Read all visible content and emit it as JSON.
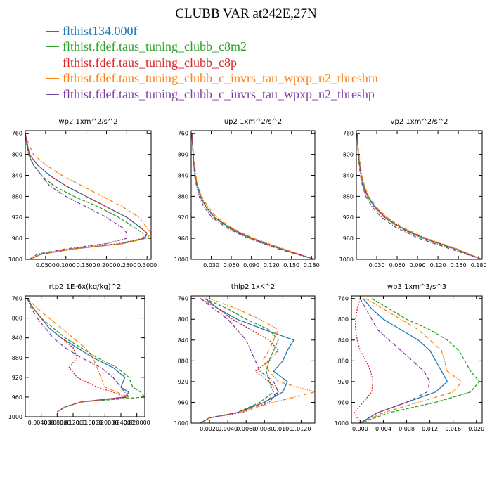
{
  "title": "CLUBB VAR at242E,27N",
  "legend": [
    {
      "label": "flthist134.000f",
      "color": "#1f77b4"
    },
    {
      "label": "flthist.fdef.taus_tuning_clubb_c8m2",
      "color": "#2ca02c"
    },
    {
      "label": "flthist.fdef.taus_tuning_clubb_c8p",
      "color": "#d62728"
    },
    {
      "label": "flthist.fdef.taus_tuning_clubb_c_invrs_tau_wpxp_n2_threshm",
      "color": "#ff7f0e"
    },
    {
      "label": "flthist.fdef.taus_tuning_clubb_c_invrs_tau_wpxp_n2_threshp",
      "color": "#7b3f9e"
    }
  ],
  "chart_data": [
    {
      "type": "line",
      "title": "wp2  1xm^2/s^2",
      "ylim": [
        1000,
        755
      ],
      "yticks": [
        760,
        800,
        840,
        880,
        920,
        960,
        1000
      ],
      "xlim": [
        0,
        0.31
      ],
      "xticks": [
        0.05,
        0.1,
        0.15,
        0.2,
        0.25,
        0.3
      ],
      "xticklabels": [
        "0.0500",
        "0.1000",
        "0.1500",
        "0.2000",
        "0.2500",
        "0.3000"
      ],
      "y": [
        760,
        780,
        800,
        820,
        840,
        860,
        880,
        900,
        920,
        940,
        950,
        960,
        970,
        980,
        990,
        1000
      ],
      "series": [
        {
          "values": [
            0.0,
            0.005,
            0.01,
            0.03,
            0.06,
            0.1,
            0.15,
            0.2,
            0.25,
            0.285,
            0.3,
            0.295,
            0.24,
            0.12,
            0.04,
            0.01
          ]
        },
        {
          "values": [
            0.0,
            0.003,
            0.008,
            0.02,
            0.04,
            0.07,
            0.12,
            0.18,
            0.23,
            0.27,
            0.29,
            0.29,
            0.24,
            0.12,
            0.04,
            0.01
          ]
        },
        {
          "values": [
            0.0,
            0.005,
            0.01,
            0.03,
            0.06,
            0.1,
            0.15,
            0.2,
            0.25,
            0.285,
            0.3,
            0.29,
            0.23,
            0.11,
            0.04,
            0.01
          ]
        },
        {
          "values": [
            0.0,
            0.008,
            0.02,
            0.05,
            0.09,
            0.14,
            0.19,
            0.24,
            0.28,
            0.3,
            0.31,
            0.3,
            0.24,
            0.12,
            0.04,
            0.01
          ]
        },
        {
          "values": [
            0.0,
            0.004,
            0.008,
            0.02,
            0.04,
            0.06,
            0.1,
            0.15,
            0.2,
            0.24,
            0.25,
            0.25,
            0.2,
            0.1,
            0.03,
            0.01
          ]
        }
      ]
    },
    {
      "type": "line",
      "title": "up2  1xm^2/s^2",
      "ylim": [
        1000,
        755
      ],
      "yticks": [
        760,
        800,
        840,
        880,
        920,
        960,
        1000
      ],
      "xlim": [
        0,
        0.185
      ],
      "xticks": [
        0.03,
        0.06,
        0.09,
        0.12,
        0.15,
        0.18
      ],
      "xticklabels": [
        "0.030",
        "0.060",
        "0.090",
        "0.120",
        "0.150",
        "0.180"
      ],
      "y": [
        760,
        780,
        800,
        820,
        840,
        860,
        880,
        900,
        920,
        940,
        960,
        980,
        1000
      ],
      "series": [
        {
          "values": [
            0.001,
            0.002,
            0.003,
            0.004,
            0.006,
            0.009,
            0.014,
            0.022,
            0.035,
            0.058,
            0.09,
            0.135,
            0.185
          ]
        },
        {
          "values": [
            0.001,
            0.002,
            0.003,
            0.004,
            0.006,
            0.009,
            0.014,
            0.022,
            0.034,
            0.056,
            0.088,
            0.133,
            0.185
          ]
        },
        {
          "values": [
            0.001,
            0.002,
            0.003,
            0.004,
            0.006,
            0.009,
            0.015,
            0.023,
            0.036,
            0.059,
            0.091,
            0.136,
            0.185
          ]
        },
        {
          "values": [
            0.001,
            0.002,
            0.003,
            0.005,
            0.007,
            0.01,
            0.016,
            0.025,
            0.038,
            0.061,
            0.093,
            0.138,
            0.185
          ]
        },
        {
          "values": [
            0.001,
            0.002,
            0.003,
            0.004,
            0.005,
            0.008,
            0.012,
            0.019,
            0.031,
            0.053,
            0.085,
            0.13,
            0.185
          ]
        }
      ]
    },
    {
      "type": "line",
      "title": "vp2  1xm^2/s^2",
      "ylim": [
        1000,
        755
      ],
      "yticks": [
        760,
        800,
        840,
        880,
        920,
        960,
        1000
      ],
      "xlim": [
        0,
        0.185
      ],
      "xticks": [
        0.03,
        0.06,
        0.09,
        0.12,
        0.15,
        0.18
      ],
      "xticklabels": [
        "0.030",
        "0.060",
        "0.090",
        "0.120",
        "0.150",
        "0.180"
      ],
      "y": [
        760,
        780,
        800,
        820,
        840,
        860,
        880,
        900,
        920,
        940,
        960,
        980,
        1000
      ],
      "series": [
        {
          "values": [
            0.001,
            0.002,
            0.003,
            0.005,
            0.007,
            0.011,
            0.017,
            0.027,
            0.042,
            0.066,
            0.1,
            0.145,
            0.185
          ]
        },
        {
          "values": [
            0.001,
            0.002,
            0.003,
            0.005,
            0.007,
            0.01,
            0.016,
            0.026,
            0.041,
            0.064,
            0.098,
            0.143,
            0.185
          ]
        },
        {
          "values": [
            0.001,
            0.002,
            0.003,
            0.005,
            0.007,
            0.011,
            0.017,
            0.028,
            0.043,
            0.067,
            0.101,
            0.146,
            0.185
          ]
        },
        {
          "values": [
            0.001,
            0.002,
            0.004,
            0.006,
            0.008,
            0.012,
            0.018,
            0.029,
            0.045,
            0.069,
            0.103,
            0.148,
            0.185
          ]
        },
        {
          "values": [
            0.001,
            0.002,
            0.003,
            0.004,
            0.006,
            0.009,
            0.014,
            0.023,
            0.037,
            0.059,
            0.092,
            0.138,
            0.185
          ]
        }
      ]
    },
    {
      "type": "line",
      "title": "rtp2  1E-6x(kg/kg)^2",
      "ylim": [
        1000,
        755
      ],
      "yticks": [
        760,
        800,
        840,
        880,
        920,
        960,
        1000
      ],
      "xlim": [
        0,
        0.03
      ],
      "xticks": [
        0.004,
        0.008,
        0.012,
        0.016,
        0.02,
        0.024,
        0.028
      ],
      "xticklabels": [
        "0.004000",
        "0.008000",
        "0.012000",
        "0.016000",
        "0.020000",
        "0.024000",
        "0.028000"
      ],
      "y": [
        760,
        780,
        800,
        820,
        840,
        860,
        880,
        900,
        920,
        940,
        950,
        960,
        970,
        980,
        990
      ],
      "series": [
        {
          "values": [
            0.0005,
            0.002,
            0.004,
            0.006,
            0.009,
            0.013,
            0.017,
            0.022,
            0.025,
            0.024,
            0.026,
            0.025,
            0.014,
            0.01,
            0.008
          ]
        },
        {
          "values": [
            0.0005,
            0.002,
            0.004,
            0.007,
            0.01,
            0.014,
            0.018,
            0.023,
            0.026,
            0.027,
            0.029,
            0.03,
            0.014,
            0.01,
            0.008
          ]
        },
        {
          "values": [
            0.0005,
            0.002,
            0.004,
            0.006,
            0.009,
            0.012,
            0.013,
            0.011,
            0.013,
            0.018,
            0.022,
            0.025,
            0.014,
            0.01,
            0.008
          ]
        },
        {
          "values": [
            0.0005,
            0.003,
            0.006,
            0.009,
            0.012,
            0.015,
            0.017,
            0.018,
            0.019,
            0.02,
            0.023,
            0.026,
            0.014,
            0.01,
            0.008
          ]
        },
        {
          "values": [
            0.0005,
            0.0015,
            0.003,
            0.005,
            0.007,
            0.01,
            0.014,
            0.019,
            0.022,
            0.024,
            0.025,
            0.026,
            0.014,
            0.01,
            0.008
          ]
        }
      ]
    },
    {
      "type": "line",
      "title": "thlp2  1xK^2",
      "ylim": [
        1000,
        755
      ],
      "yticks": [
        760,
        800,
        840,
        880,
        920,
        960,
        1000
      ],
      "xlim": [
        0,
        0.0135
      ],
      "xticks": [
        0.002,
        0.004,
        0.006,
        0.008,
        0.01,
        0.012
      ],
      "xticklabels": [
        "0.0020",
        "0.0040",
        "0.0060",
        "0.0080",
        "0.0100",
        "0.0120"
      ],
      "y": [
        760,
        780,
        800,
        820,
        840,
        860,
        880,
        900,
        920,
        940,
        960,
        980,
        990,
        1000
      ],
      "series": [
        {
          "values": [
            0.0015,
            0.003,
            0.005,
            0.008,
            0.0112,
            0.0105,
            0.01,
            0.009,
            0.0105,
            0.01,
            0.008,
            0.005,
            0.002,
            0.001
          ]
        },
        {
          "values": [
            0.0015,
            0.004,
            0.006,
            0.0085,
            0.0095,
            0.009,
            0.0085,
            0.0082,
            0.0085,
            0.009,
            0.0075,
            0.005,
            0.002,
            0.001
          ]
        },
        {
          "values": [
            0.001,
            0.003,
            0.0045,
            0.0065,
            0.0085,
            0.0095,
            0.0085,
            0.007,
            0.0085,
            0.0095,
            0.0085,
            0.0055,
            0.002,
            0.001
          ]
        },
        {
          "values": [
            0.002,
            0.005,
            0.0075,
            0.0095,
            0.009,
            0.0085,
            0.0078,
            0.0085,
            0.0095,
            0.0135,
            0.009,
            0.005,
            0.002,
            0.001
          ]
        },
        {
          "values": [
            0.001,
            0.0025,
            0.004,
            0.005,
            0.006,
            0.0065,
            0.007,
            0.0075,
            0.009,
            0.0095,
            0.008,
            0.005,
            0.002,
            0.001
          ]
        }
      ]
    },
    {
      "type": "line",
      "title": "wp3  1xm^3/s^3",
      "ylim": [
        1000,
        755
      ],
      "yticks": [
        760,
        800,
        840,
        880,
        920,
        960,
        1000
      ],
      "xlim": [
        -0.0015,
        0.021
      ],
      "xticks": [
        0.0,
        0.004,
        0.008,
        0.012,
        0.016,
        0.02
      ],
      "xticklabels": [
        "0.000",
        "0.004",
        "0.008",
        "0.012",
        "0.016",
        "0.020"
      ],
      "y": [
        760,
        780,
        800,
        820,
        840,
        860,
        880,
        900,
        920,
        940,
        960,
        980,
        1000
      ],
      "series": [
        {
          "values": [
            0.0005,
            0.002,
            0.004,
            0.007,
            0.01,
            0.012,
            0.013,
            0.014,
            0.015,
            0.013,
            0.008,
            0.003,
            0.0
          ]
        },
        {
          "values": [
            0.002,
            0.005,
            0.008,
            0.012,
            0.015,
            0.017,
            0.018,
            0.019,
            0.0205,
            0.019,
            0.013,
            0.005,
            0.0
          ]
        },
        {
          "values": [
            0.0,
            -0.0005,
            -0.0008,
            -0.0008,
            -0.0005,
            0.0,
            0.001,
            0.0018,
            0.0022,
            0.002,
            0.0005,
            -0.001,
            0.0
          ]
        },
        {
          "values": [
            0.001,
            0.004,
            0.007,
            0.01,
            0.012,
            0.014,
            0.0145,
            0.015,
            0.0175,
            0.016,
            0.01,
            0.004,
            0.0
          ]
        },
        {
          "values": [
            0.0,
            0.001,
            0.002,
            0.003,
            0.005,
            0.007,
            0.009,
            0.011,
            0.012,
            0.0115,
            0.008,
            0.003,
            0.0
          ]
        }
      ]
    }
  ]
}
